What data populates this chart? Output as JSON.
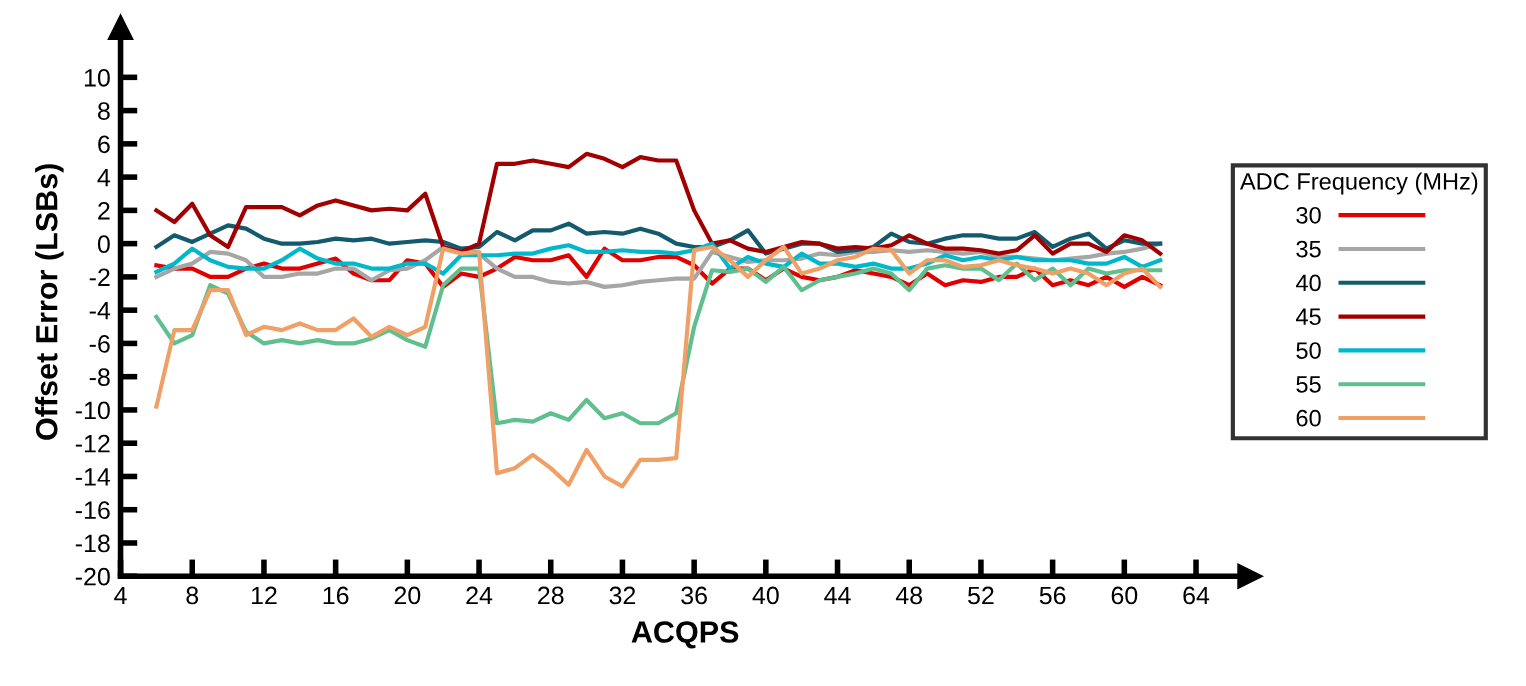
{
  "chart_data": {
    "type": "line",
    "xlabel": "ACQPS",
    "ylabel": "Offset Error (LSBs)",
    "legend_title": "ADC Frequency (MHz)",
    "legend": "right",
    "grid": false,
    "x": [
      6,
      7,
      8,
      9,
      10,
      11,
      12,
      13,
      14,
      15,
      16,
      17,
      18,
      19,
      20,
      21,
      22,
      23,
      24,
      25,
      26,
      27,
      28,
      29,
      30,
      31,
      32,
      33,
      34,
      35,
      36,
      37,
      38,
      39,
      40,
      41,
      42,
      43,
      44,
      45,
      46,
      47,
      48,
      49,
      50,
      51,
      52,
      53,
      54,
      55,
      56,
      57,
      58,
      59,
      60,
      61,
      62
    ],
    "xlim": [
      4,
      67
    ],
    "xticks": [
      4,
      8,
      12,
      16,
      20,
      24,
      28,
      32,
      36,
      40,
      44,
      48,
      52,
      56,
      60,
      64
    ],
    "ylim": [
      -20,
      13
    ],
    "yticks": [
      -20,
      -18,
      -16,
      -14,
      -12,
      -10,
      -8,
      -6,
      -4,
      -2,
      0,
      2,
      4,
      6,
      8,
      10
    ],
    "series": [
      {
        "name": "30",
        "color": "#e00000",
        "values": [
          -1.3,
          -1.5,
          -1.5,
          -2,
          -2,
          -1.5,
          -1.2,
          -1.5,
          -1.5,
          -1.2,
          -0.9,
          -1.8,
          -2.2,
          -2.2,
          -1,
          -1.2,
          -2.6,
          -1.8,
          -2,
          -1.5,
          -0.8,
          -1,
          -1,
          -0.7,
          -2,
          -0.3,
          -1,
          -1,
          -0.8,
          -0.8,
          -1.3,
          -2.4,
          -1.5,
          -1.5,
          -2.2,
          -1.5,
          -2,
          -2.2,
          -2,
          -1.6,
          -1.8,
          -2,
          -2.5,
          -1.8,
          -2.5,
          -2.2,
          -2.3,
          -2,
          -2,
          -1.5,
          -2.5,
          -2.2,
          -2.5,
          -2,
          -2.6,
          -2,
          -2.5
        ]
      },
      {
        "name": "35",
        "color": "#a6a6a6",
        "values": [
          -2,
          -1.5,
          -1.2,
          -0.5,
          -0.6,
          -1,
          -2,
          -2,
          -1.8,
          -1.8,
          -1.5,
          -1.5,
          -2.2,
          -1.6,
          -1.5,
          -1,
          -0.2,
          -0.3,
          -0.6,
          -1.5,
          -2,
          -2,
          -2.3,
          -2.4,
          -2.3,
          -2.6,
          -2.5,
          -2.3,
          -2.2,
          -2.1,
          -2.1,
          -0.5,
          -0.8,
          -1.1,
          -1,
          -1,
          -0.9,
          -0.6,
          -0.7,
          -0.5,
          -0.5,
          -0.4,
          -0.5,
          -0.4,
          -0.5,
          -0.6,
          -0.5,
          -0.8,
          -0.8,
          -0.9,
          -1,
          -0.9,
          -0.8,
          -0.6,
          -0.5,
          -0.3,
          0
        ]
      },
      {
        "name": "40",
        "color": "#145a6e",
        "values": [
          -0.2,
          0.5,
          0.1,
          0.6,
          1.1,
          0.9,
          0.3,
          0,
          0,
          0.1,
          0.3,
          0.2,
          0.3,
          0,
          0.1,
          0.2,
          0.1,
          -0.3,
          -0.2,
          0.7,
          0.2,
          0.8,
          0.8,
          1.2,
          0.6,
          0.7,
          0.6,
          0.9,
          0.6,
          0,
          -0.2,
          -0.2,
          0.2,
          0.8,
          -0.6,
          -0.3,
          0,
          0,
          -0.5,
          -0.4,
          -0.2,
          0.6,
          0.1,
          0,
          0.3,
          0.5,
          0.5,
          0.3,
          0.3,
          0.7,
          -0.2,
          0.3,
          0.6,
          -0.3,
          0.2,
          0,
          0
        ]
      },
      {
        "name": "45",
        "color": "#a00000",
        "values": [
          2,
          1.3,
          2.4,
          0.5,
          -0.2,
          2.2,
          2.2,
          2.2,
          1.7,
          2.3,
          2.6,
          2.3,
          2,
          2.1,
          2,
          3,
          -0.2,
          -0.5,
          0,
          4.8,
          4.8,
          5,
          4.8,
          4.6,
          5.4,
          5.1,
          4.6,
          5.2,
          5,
          5,
          2,
          0,
          0.2,
          -0.3,
          -0.5,
          -0.2,
          0.1,
          0,
          -0.3,
          -0.2,
          -0.3,
          -0.1,
          0.5,
          0,
          -0.3,
          -0.3,
          -0.4,
          -0.6,
          -0.4,
          0.5,
          -0.6,
          0,
          0,
          -0.5,
          0.5,
          0.2,
          -0.6
        ]
      },
      {
        "name": "50",
        "color": "#00b8cc",
        "values": [
          -1.7,
          -1.2,
          -0.3,
          -1,
          -1.4,
          -1.5,
          -1.5,
          -1,
          -0.3,
          -0.9,
          -1.2,
          -1.2,
          -1.5,
          -1.5,
          -1.2,
          -1.2,
          -1.8,
          -0.7,
          -0.7,
          -0.7,
          -0.6,
          -0.6,
          -0.3,
          -0.1,
          -0.5,
          -0.5,
          -0.4,
          -0.5,
          -0.5,
          -0.6,
          -0.4,
          0,
          -1.5,
          -0.8,
          -1.2,
          -1.4,
          -0.6,
          -1.2,
          -1.2,
          -1.4,
          -1.2,
          -1.5,
          -1.5,
          -1.2,
          -0.7,
          -1,
          -0.8,
          -1,
          -0.8,
          -1,
          -1,
          -1,
          -1.2,
          -1.2,
          -0.8,
          -1.4,
          -1
        ]
      },
      {
        "name": "55",
        "color": "#5fbf8f",
        "values": [
          -4.4,
          -6,
          -5.5,
          -2.5,
          -3,
          -5.3,
          -6,
          -5.8,
          -6,
          -5.8,
          -6,
          -6,
          -5.7,
          -5.2,
          -5.8,
          -6.2,
          -2.5,
          -1.5,
          -1.5,
          -10.8,
          -10.6,
          -10.7,
          -10.2,
          -10.6,
          -9.4,
          -10.5,
          -10.2,
          -10.8,
          -10.8,
          -10.2,
          -5,
          -1.6,
          -1.7,
          -1.5,
          -2.3,
          -1.4,
          -2.8,
          -2.2,
          -2,
          -1.8,
          -1.5,
          -1.8,
          -2.8,
          -1.5,
          -1.3,
          -1.5,
          -1.5,
          -2.2,
          -1.2,
          -2.2,
          -1.5,
          -2.5,
          -1.5,
          -1.8,
          -1.6,
          -1.6,
          -1.6
        ]
      },
      {
        "name": "60",
        "color": "#f0a066",
        "values": [
          -9.8,
          -5.2,
          -5.2,
          -2.8,
          -2.8,
          -5.5,
          -5,
          -5.2,
          -4.8,
          -5.2,
          -5.2,
          -4.5,
          -5.6,
          -5,
          -5.5,
          -5,
          -0.3,
          -0.6,
          -0.5,
          -13.8,
          -13.5,
          -12.7,
          -13.5,
          -14.5,
          -12.4,
          -14,
          -14.6,
          -13,
          -13,
          -12.9,
          -0.4,
          -0.2,
          -1,
          -2,
          -1,
          -0.2,
          -1.8,
          -1.5,
          -1,
          -0.8,
          -0.3,
          -0.4,
          -1.8,
          -1,
          -1,
          -1.4,
          -1.3,
          -1,
          -1.3,
          -1.5,
          -1.8,
          -1.5,
          -1.8,
          -2.5,
          -1.8,
          -1.5,
          -2.6
        ]
      }
    ]
  }
}
